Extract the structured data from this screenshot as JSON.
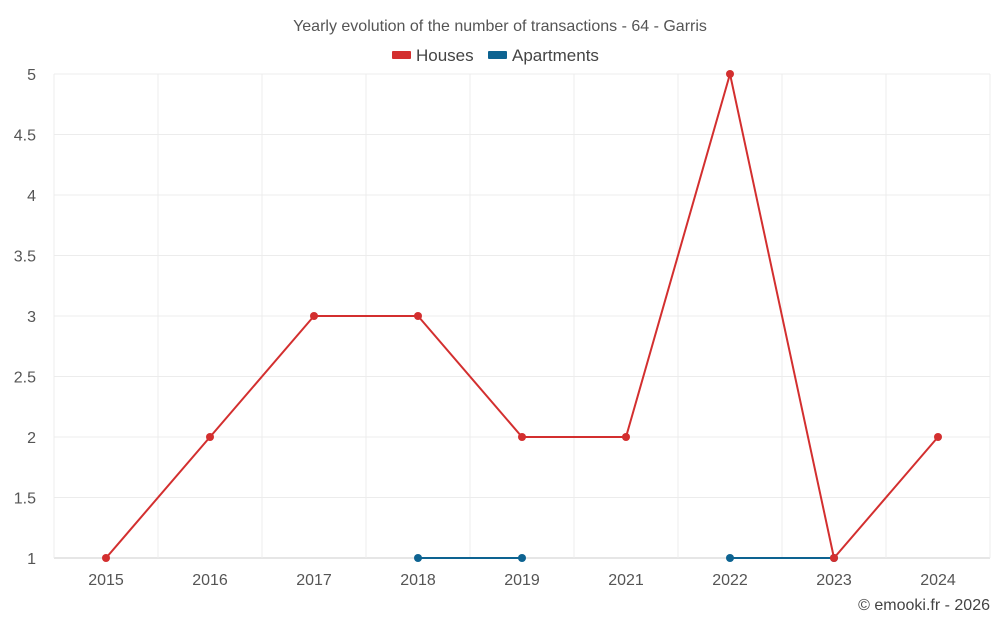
{
  "chart_data": {
    "type": "line",
    "title": "Yearly evolution of the number of transactions - 64 - Garris",
    "categories": [
      "2015",
      "2016",
      "2017",
      "2018",
      "2019",
      "2021",
      "2022",
      "2023",
      "2024"
    ],
    "ylim": [
      1,
      5
    ],
    "yticks": [
      1,
      1.5,
      2,
      2.5,
      3,
      3.5,
      4,
      4.5,
      5
    ],
    "ytick_labels": [
      "1",
      "1.5",
      "2",
      "2.5",
      "3",
      "3.5",
      "4",
      "4.5",
      "5"
    ],
    "grid": true,
    "legend_position": "top-center",
    "series": [
      {
        "name": "Houses",
        "color": "#d32f2f",
        "values": [
          1,
          2,
          3,
          3,
          2,
          2,
          5,
          1,
          2
        ]
      },
      {
        "name": "Apartments",
        "color": "#0d6391",
        "values": [
          null,
          null,
          null,
          1,
          1,
          null,
          1,
          1,
          null
        ]
      }
    ]
  },
  "credit": "© emooki.fr - 2026"
}
